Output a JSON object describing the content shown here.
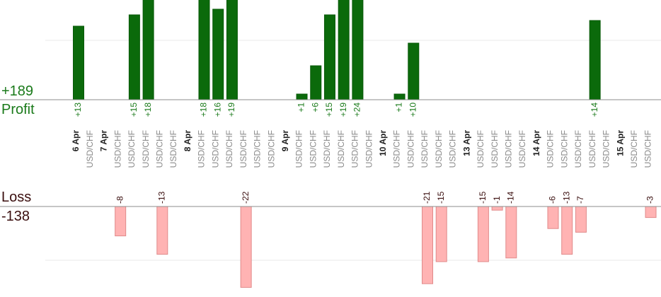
{
  "chart_data": {
    "type": "bar",
    "profit": {
      "label": "Profit",
      "total": "+189",
      "color": "#0b6a0b",
      "label_color": "#1a7a1a",
      "bars": [
        {
          "slot": 0,
          "value": 13,
          "label": "+13"
        },
        {
          "slot": 4,
          "value": 15,
          "label": "+15"
        },
        {
          "slot": 5,
          "value": 18,
          "label": "+18"
        },
        {
          "slot": 9,
          "value": 18,
          "label": "+18"
        },
        {
          "slot": 10,
          "value": 16,
          "label": "+16"
        },
        {
          "slot": 11,
          "value": 19,
          "label": "+19"
        },
        {
          "slot": 16,
          "value": 1,
          "label": "+1"
        },
        {
          "slot": 17,
          "value": 6,
          "label": "+6"
        },
        {
          "slot": 18,
          "value": 15,
          "label": "+15"
        },
        {
          "slot": 19,
          "value": 19,
          "label": "+19"
        },
        {
          "slot": 20,
          "value": 24,
          "label": "+24"
        },
        {
          "slot": 23,
          "value": 1,
          "label": "+1"
        },
        {
          "slot": 24,
          "value": 10,
          "label": "+10"
        },
        {
          "slot": 37,
          "value": 14,
          "label": "+14"
        }
      ]
    },
    "loss": {
      "label": "Loss",
      "total": "-138",
      "color": "#ffb3b3",
      "label_color": "#3a0e0e",
      "bars": [
        {
          "slot": 3,
          "value": -8,
          "label": "-8"
        },
        {
          "slot": 6,
          "value": -13,
          "label": "-13"
        },
        {
          "slot": 12,
          "value": -22,
          "label": "-22"
        },
        {
          "slot": 25,
          "value": -21,
          "label": "-21"
        },
        {
          "slot": 26,
          "value": -15,
          "label": "-15"
        },
        {
          "slot": 29,
          "value": -15,
          "label": "-15"
        },
        {
          "slot": 30,
          "value": -1,
          "label": "-1"
        },
        {
          "slot": 31,
          "value": -14,
          "label": "-14"
        },
        {
          "slot": 34,
          "value": -6,
          "label": "-6"
        },
        {
          "slot": 35,
          "value": -13,
          "label": "-13"
        },
        {
          "slot": 36,
          "value": -7,
          "label": "-7"
        },
        {
          "slot": 41,
          "value": -3,
          "label": "-3"
        }
      ]
    },
    "categories": [
      {
        "text": "6 Apr",
        "kind": "date"
      },
      {
        "text": "USD/CHF",
        "kind": "pair"
      },
      {
        "text": "7 Apr",
        "kind": "date"
      },
      {
        "text": "USD/CHF",
        "kind": "pair"
      },
      {
        "text": "USD/CHF",
        "kind": "pair"
      },
      {
        "text": "USD/CHF",
        "kind": "pair"
      },
      {
        "text": "USD/CHF",
        "kind": "pair"
      },
      {
        "text": "USD/CHF",
        "kind": "pair"
      },
      {
        "text": "8 Apr",
        "kind": "date"
      },
      {
        "text": "USD/CHF",
        "kind": "pair"
      },
      {
        "text": "USD/CHF",
        "kind": "pair"
      },
      {
        "text": "USD/CHF",
        "kind": "pair"
      },
      {
        "text": "USD/CHF",
        "kind": "pair"
      },
      {
        "text": "USD/CHF",
        "kind": "pair"
      },
      {
        "text": "USD/CHF",
        "kind": "pair"
      },
      {
        "text": "9 Apr",
        "kind": "date"
      },
      {
        "text": "USD/CHF",
        "kind": "pair"
      },
      {
        "text": "USD/CHF",
        "kind": "pair"
      },
      {
        "text": "USD/CHF",
        "kind": "pair"
      },
      {
        "text": "USD/CHF",
        "kind": "pair"
      },
      {
        "text": "USD/CHF",
        "kind": "pair"
      },
      {
        "text": "USD/CHF",
        "kind": "pair"
      },
      {
        "text": "10 Apr",
        "kind": "date"
      },
      {
        "text": "USD/CHF",
        "kind": "pair"
      },
      {
        "text": "USD/CHF",
        "kind": "pair"
      },
      {
        "text": "USD/CHF",
        "kind": "pair"
      },
      {
        "text": "USD/CHF",
        "kind": "pair"
      },
      {
        "text": "USD/CHF",
        "kind": "pair"
      },
      {
        "text": "13 Apr",
        "kind": "date"
      },
      {
        "text": "USD/CHF",
        "kind": "pair"
      },
      {
        "text": "USD/CHF",
        "kind": "pair"
      },
      {
        "text": "USD/CHF",
        "kind": "pair"
      },
      {
        "text": "USD/CHF",
        "kind": "pair"
      },
      {
        "text": "14 Apr",
        "kind": "date"
      },
      {
        "text": "USD/CHF",
        "kind": "pair"
      },
      {
        "text": "USD/CHF",
        "kind": "pair"
      },
      {
        "text": "USD/CHF",
        "kind": "pair"
      },
      {
        "text": "USD/CHF",
        "kind": "pair"
      },
      {
        "text": "USD/CHF",
        "kind": "pair"
      },
      {
        "text": "15 Apr",
        "kind": "date"
      },
      {
        "text": "USD/CHF",
        "kind": "pair"
      },
      {
        "text": "USD/CHF",
        "kind": "pair"
      }
    ]
  }
}
